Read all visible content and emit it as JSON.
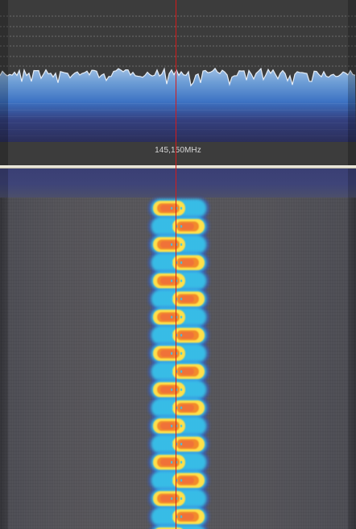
{
  "spectrum": {
    "frequency_label": "145,150MHz",
    "trace_color": "#e6edf6",
    "fill_color": "#4f8fd0",
    "grid_color": "#9a9a9a"
  },
  "waterfall": {
    "signal_colors": [
      "#2d5bd6",
      "#37c6ee",
      "#ffe04a",
      "#f28a2c",
      "#ef6f3a"
    ]
  },
  "tuning_marker": {
    "color": "#d61a1a"
  }
}
